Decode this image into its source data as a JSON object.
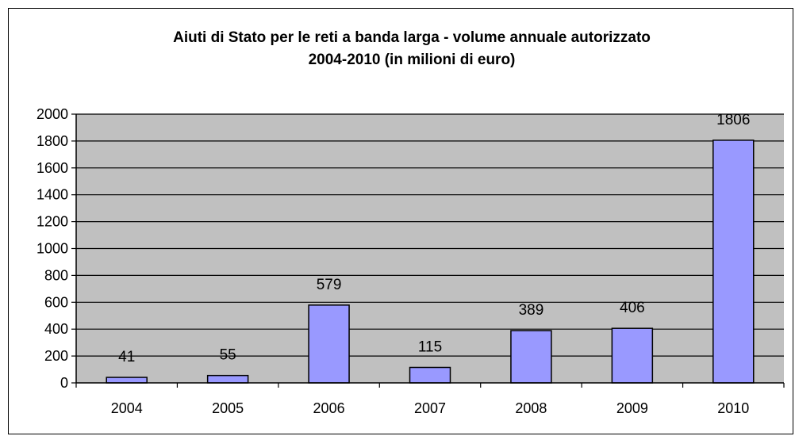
{
  "chart_data": {
    "type": "bar",
    "title": "Aiuti di Stato per le reti a banda larga - volume annuale autorizzato",
    "subtitle": "2004-2010 (in milioni di euro)",
    "xlabel": "",
    "ylabel": "",
    "categories": [
      "2004",
      "2005",
      "2006",
      "2007",
      "2008",
      "2009",
      "2010"
    ],
    "values": [
      41,
      55,
      579,
      115,
      389,
      406,
      1806
    ],
    "value_labels": [
      "41",
      "55",
      "579",
      "115",
      "389",
      "406",
      "1806"
    ],
    "y_ticks": [
      "0",
      "200",
      "400",
      "600",
      "800",
      "1000",
      "1200",
      "1400",
      "1600",
      "1800",
      "2000"
    ],
    "ylim": [
      0,
      2000
    ],
    "grid": true,
    "legend": "none",
    "colors": {
      "bar_fill": "#9999ff",
      "bar_stroke": "#000000",
      "plot_background": "#c0c0c0",
      "gridline": "#000000"
    }
  }
}
